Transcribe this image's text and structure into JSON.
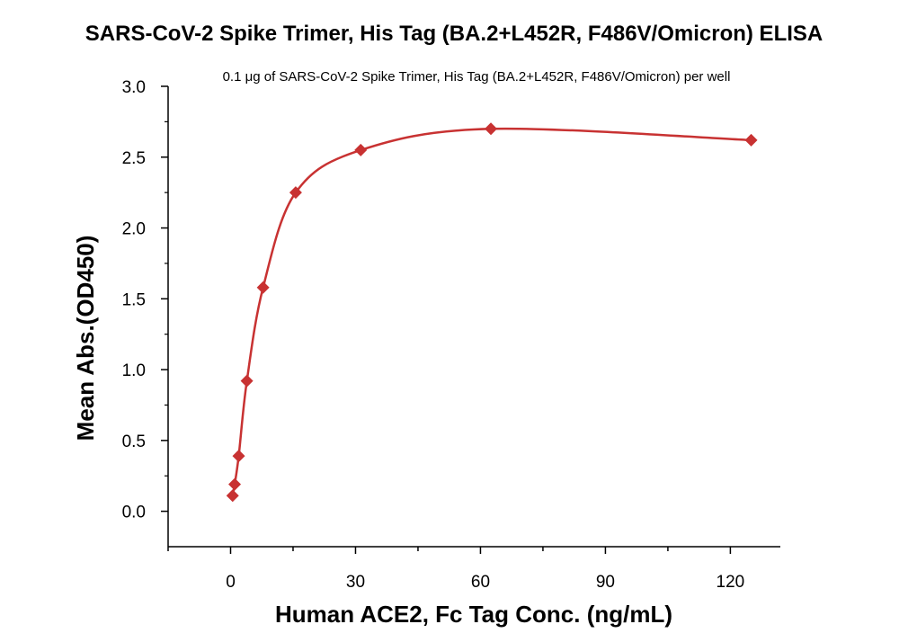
{
  "chart_data": {
    "type": "scatter",
    "title": "SARS-CoV-2 Spike Trimer, His Tag (BA.2+L452R, F486V/Omicron) ELISA",
    "subtitle": "0.1 μg of SARS-CoV-2 Spike Trimer, His Tag (BA.2+L452R, F486V/Omicron) per well",
    "xlabel": "Human ACE2, Fc Tag Conc. (ng/mL)",
    "ylabel": "Mean Abs.(OD450)",
    "xlim": [
      -15,
      132
    ],
    "ylim": [
      -0.25,
      3.0
    ],
    "xticks": [
      0,
      30,
      60,
      90,
      120
    ],
    "yticks": [
      0.0,
      0.5,
      1.0,
      1.5,
      2.0,
      2.5,
      3.0
    ],
    "xtick_labels": [
      "0",
      "30",
      "60",
      "90",
      "120"
    ],
    "ytick_labels": [
      "0.0",
      "0.5",
      "1.0",
      "1.5",
      "2.0",
      "2.5",
      "3.0"
    ],
    "color": "#c83232",
    "marker": "diamond",
    "fit_line": true,
    "grid": false,
    "series": [
      {
        "x": [
          0.49,
          0.98,
          1.95,
          3.91,
          7.81,
          15.63,
          31.25,
          62.5,
          125
        ],
        "y": [
          0.11,
          0.19,
          0.39,
          0.92,
          1.58,
          2.25,
          2.55,
          2.7,
          2.62
        ]
      }
    ]
  }
}
